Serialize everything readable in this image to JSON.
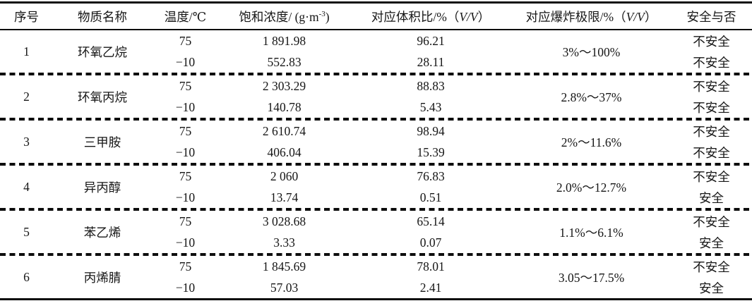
{
  "table": {
    "columns": {
      "index": {
        "label": "序号"
      },
      "substance": {
        "label": "物质名称"
      },
      "temperature": {
        "label": "温度/℃"
      },
      "saturation": {
        "prefix": "饱和浓度/ (g·m",
        "sup": "-3",
        "suffix": ")"
      },
      "volume_ratio": {
        "prefix": "对应体积比/%（",
        "italic": "V/V",
        "suffix": "）"
      },
      "explosion_limit": {
        "prefix": "对应爆炸极限/%（",
        "italic": "V/V",
        "suffix": "）"
      },
      "safety": {
        "label": "安全与否"
      }
    },
    "rows": [
      {
        "index": "1",
        "substance": "环氧乙烷",
        "explosion_limit": "3%～100%",
        "conditions": [
          {
            "temperature": "75",
            "saturation": "1 891.98",
            "volume_ratio": "96.21",
            "safety": "不安全"
          },
          {
            "temperature": "−10",
            "saturation": "552.83",
            "volume_ratio": "28.11",
            "safety": "不安全"
          }
        ]
      },
      {
        "index": "2",
        "substance": "环氧丙烷",
        "explosion_limit": "2.8%～37%",
        "conditions": [
          {
            "temperature": "75",
            "saturation": "2 303.29",
            "volume_ratio": "88.83",
            "safety": "不安全"
          },
          {
            "temperature": "−10",
            "saturation": "140.78",
            "volume_ratio": "5.43",
            "safety": "不安全"
          }
        ]
      },
      {
        "index": "3",
        "substance": "三甲胺",
        "explosion_limit": "2%～11.6%",
        "conditions": [
          {
            "temperature": "75",
            "saturation": "2 610.74",
            "volume_ratio": "98.94",
            "safety": "不安全"
          },
          {
            "temperature": "−10",
            "saturation": "406.04",
            "volume_ratio": "15.39",
            "safety": "不安全"
          }
        ]
      },
      {
        "index": "4",
        "substance": "异丙醇",
        "explosion_limit": "2.0%～12.7%",
        "conditions": [
          {
            "temperature": "75",
            "saturation": "2 060",
            "volume_ratio": "76.83",
            "safety": "不安全"
          },
          {
            "temperature": "−10",
            "saturation": "13.74",
            "volume_ratio": "0.51",
            "safety": "安全"
          }
        ]
      },
      {
        "index": "5",
        "substance": "苯乙烯",
        "explosion_limit": "1.1%～6.1%",
        "conditions": [
          {
            "temperature": "75",
            "saturation": "3 028.68",
            "volume_ratio": "65.14",
            "safety": "不安全"
          },
          {
            "temperature": "−10",
            "saturation": "3.33",
            "volume_ratio": "0.07",
            "safety": "安全"
          }
        ]
      },
      {
        "index": "6",
        "substance": "丙烯腈",
        "explosion_limit": "3.05～17.5%",
        "conditions": [
          {
            "temperature": "75",
            "saturation": "1 845.69",
            "volume_ratio": "78.01",
            "safety": "不安全"
          },
          {
            "temperature": "−10",
            "saturation": "57.03",
            "volume_ratio": "2.41",
            "safety": "安全"
          }
        ]
      }
    ]
  }
}
